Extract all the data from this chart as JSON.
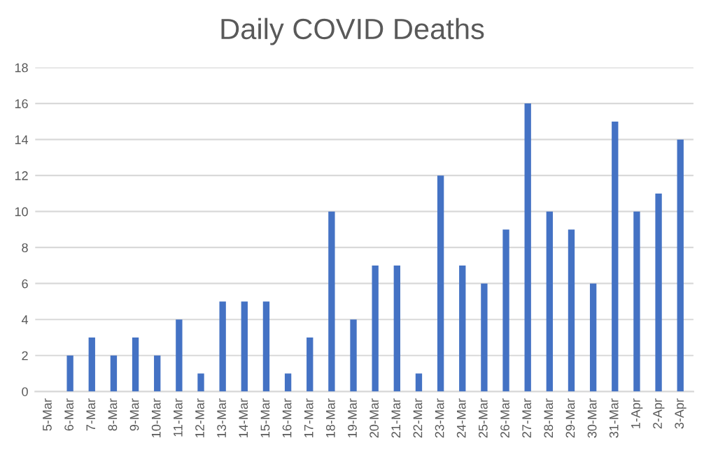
{
  "chart_data": {
    "type": "bar",
    "title": "Daily COVID Deaths",
    "categories": [
      "5-Mar",
      "6-Mar",
      "7-Mar",
      "8-Mar",
      "9-Mar",
      "10-Mar",
      "11-Mar",
      "12-Mar",
      "13-Mar",
      "14-Mar",
      "15-Mar",
      "16-Mar",
      "17-Mar",
      "18-Mar",
      "19-Mar",
      "20-Mar",
      "21-Mar",
      "22-Mar",
      "23-Mar",
      "24-Mar",
      "25-Mar",
      "26-Mar",
      "27-Mar",
      "28-Mar",
      "29-Mar",
      "30-Mar",
      "31-Mar",
      "1-Apr",
      "2-Apr",
      "3-Apr"
    ],
    "values": [
      0,
      2,
      3,
      2,
      3,
      2,
      4,
      1,
      5,
      5,
      5,
      1,
      3,
      10,
      4,
      7,
      7,
      1,
      12,
      7,
      6,
      9,
      16,
      10,
      9,
      6,
      15,
      10,
      11,
      14
    ],
    "color": "#4472c4",
    "ylim": [
      0,
      18
    ],
    "yticks": [
      0,
      2,
      4,
      6,
      8,
      10,
      12,
      14,
      16,
      18
    ],
    "grid": "y"
  }
}
